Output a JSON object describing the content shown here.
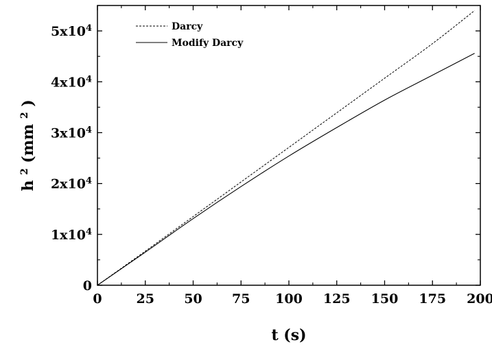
{
  "chart_data": {
    "type": "line",
    "title": "",
    "xlabel": "t (s)",
    "ylabel_base": "h",
    "ylabel_sup": "2",
    "ylabel_unit_open": " (mm",
    "ylabel_unit_sup": "2",
    "ylabel_unit_close": ")",
    "xlim": [
      0,
      200
    ],
    "ylim": [
      0,
      55000
    ],
    "grid": false,
    "legend_position": "top-left",
    "x_ticks": [
      {
        "value": 0,
        "label": "0"
      },
      {
        "value": 25,
        "label": "25"
      },
      {
        "value": 50,
        "label": "50"
      },
      {
        "value": 75,
        "label": "75"
      },
      {
        "value": 100,
        "label": "100"
      },
      {
        "value": 125,
        "label": "125"
      },
      {
        "value": 150,
        "label": "150"
      },
      {
        "value": 175,
        "label": "175"
      },
      {
        "value": 200,
        "label": "200"
      }
    ],
    "y_ticks": [
      {
        "value": 0,
        "mantissa": "0",
        "exponent": ""
      },
      {
        "value": 10000,
        "mantissa": "1x10",
        "exponent": "4"
      },
      {
        "value": 20000,
        "mantissa": "2x10",
        "exponent": "4"
      },
      {
        "value": 30000,
        "mantissa": "3x10",
        "exponent": "4"
      },
      {
        "value": 40000,
        "mantissa": "4x10",
        "exponent": "4"
      },
      {
        "value": 50000,
        "mantissa": "5x10",
        "exponent": "4"
      }
    ],
    "series": [
      {
        "name": "Darcy",
        "style": "dashed",
        "color": "#000000",
        "x": [
          0,
          25,
          50,
          75,
          100,
          125,
          150,
          175,
          197
        ],
        "y": [
          0,
          6700,
          13500,
          20300,
          27100,
          33900,
          40700,
          47500,
          54000
        ]
      },
      {
        "name": "Modify Darcy",
        "style": "solid",
        "color": "#000000",
        "x": [
          0,
          25,
          50,
          75,
          100,
          125,
          150,
          175,
          197
        ],
        "y": [
          0,
          6500,
          13100,
          19400,
          25400,
          31000,
          36400,
          41300,
          45600
        ]
      }
    ]
  }
}
